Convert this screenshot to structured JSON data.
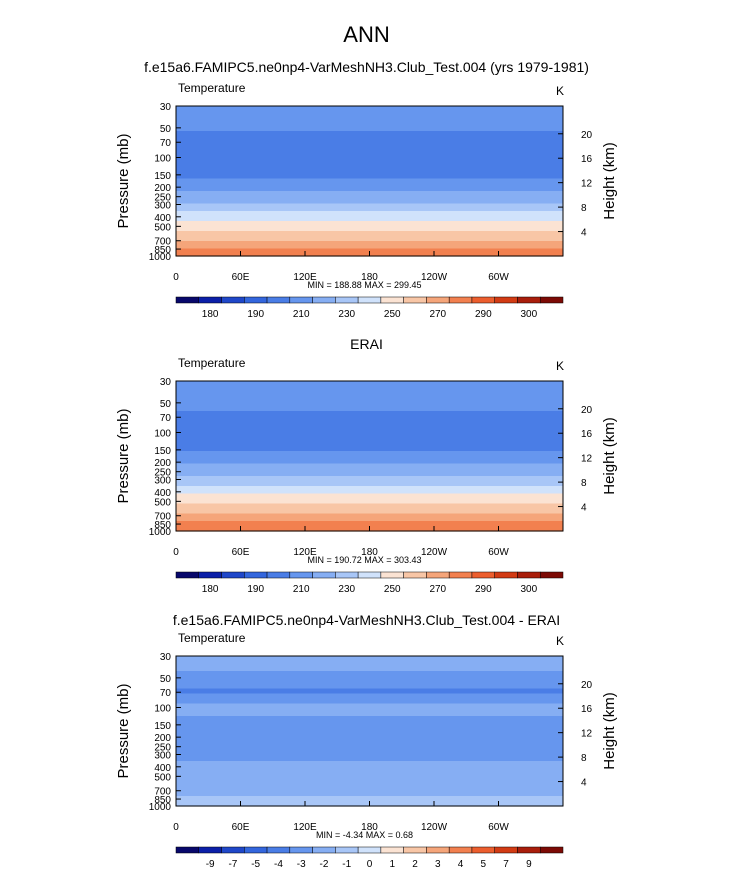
{
  "page": {
    "title": "ANN",
    "model_title": "f.e15a6.FAMIPC5.ne0np4-VarMeshNH3.Club_Test.004 (yrs 1979-1981)",
    "obs_title": "ERAI",
    "diff_title": "f.e15a6.FAMIPC5.ne0np4-VarMeshNH3.Club_Test.004 - ERAI"
  },
  "colors": {
    "temperature_bands": [
      "#08086b",
      "#0b1fa8",
      "#1f47c9",
      "#3366dd",
      "#4a7de6",
      "#6696ee",
      "#86aef3",
      "#a8c6f7",
      "#d0e2fb",
      "#fbe3d3",
      "#f8c6a6",
      "#f5a57a",
      "#f2804f",
      "#ec5e2e",
      "#d23b14",
      "#a91e0b",
      "#7c0a05"
    ],
    "difference_bands": [
      "#08086b",
      "#0b1fa8",
      "#1f47c9",
      "#3366dd",
      "#4a7de6",
      "#6696ee",
      "#86aef3",
      "#a8c6f7",
      "#d0e2fb",
      "#fbe3d3",
      "#f8c6a6",
      "#f5a57a",
      "#f2804f",
      "#ec5e2e",
      "#d23b14",
      "#a91e0b",
      "#7c0a05"
    ]
  },
  "chart_data": [
    {
      "type": "heatmap",
      "panel_key": "model",
      "title": "f.e15a6.FAMIPC5.ne0np4-VarMeshNH3.Club_Test.004 (yrs 1979-1981)",
      "left_label": "Temperature",
      "units": "K",
      "ylabel": "Pressure (mb)",
      "ylabel_right": "Height (km)",
      "y_ticks": [
        "30",
        "50",
        "70",
        "100",
        "150",
        "200",
        "250",
        "300",
        "400",
        "500",
        "700",
        "850",
        "1000"
      ],
      "y_ticks_right": [
        "20",
        "16",
        "12",
        "8",
        "4"
      ],
      "x_ticks": [
        "0",
        "60E",
        "120E",
        "180",
        "120W",
        "60W"
      ],
      "xlim": [
        0,
        360
      ],
      "ylim": [
        1000,
        30
      ],
      "stats": "MIN = 188.88  MAX = 299.45",
      "colorbar_labels": [
        "180",
        "190",
        "210",
        "230",
        "250",
        "270",
        "290",
        "300"
      ],
      "profile": [
        {
          "p": 30,
          "value": 213
        },
        {
          "p": 50,
          "value": 211
        },
        {
          "p": 70,
          "value": 206
        },
        {
          "p": 100,
          "value": 200
        },
        {
          "p": 150,
          "value": 207
        },
        {
          "p": 200,
          "value": 217
        },
        {
          "p": 250,
          "value": 223
        },
        {
          "p": 300,
          "value": 232
        },
        {
          "p": 400,
          "value": 246
        },
        {
          "p": 500,
          "value": 256
        },
        {
          "p": 700,
          "value": 271
        },
        {
          "p": 850,
          "value": 281
        },
        {
          "p": 1000,
          "value": 289
        }
      ]
    },
    {
      "type": "heatmap",
      "panel_key": "obs",
      "title": "ERAI",
      "left_label": "Temperature",
      "units": "K",
      "ylabel": "Pressure (mb)",
      "ylabel_right": "Height (km)",
      "y_ticks": [
        "30",
        "50",
        "70",
        "100",
        "150",
        "200",
        "250",
        "300",
        "400",
        "500",
        "700",
        "850",
        "1000"
      ],
      "y_ticks_right": [
        "20",
        "16",
        "12",
        "8",
        "4"
      ],
      "x_ticks": [
        "0",
        "60E",
        "120E",
        "180",
        "120W",
        "60W"
      ],
      "xlim": [
        0,
        360
      ],
      "ylim": [
        1000,
        30
      ],
      "stats": "MIN = 190.72  MAX = 303.43",
      "colorbar_labels": [
        "180",
        "190",
        "210",
        "230",
        "250",
        "270",
        "290",
        "300"
      ],
      "profile": [
        {
          "p": 30,
          "value": 214
        },
        {
          "p": 50,
          "value": 212
        },
        {
          "p": 70,
          "value": 208
        },
        {
          "p": 100,
          "value": 201
        },
        {
          "p": 150,
          "value": 209
        },
        {
          "p": 200,
          "value": 219
        },
        {
          "p": 250,
          "value": 226
        },
        {
          "p": 300,
          "value": 234
        },
        {
          "p": 400,
          "value": 248
        },
        {
          "p": 500,
          "value": 258
        },
        {
          "p": 700,
          "value": 273
        },
        {
          "p": 850,
          "value": 283
        },
        {
          "p": 1000,
          "value": 291
        }
      ]
    },
    {
      "type": "heatmap",
      "panel_key": "diff",
      "title": "f.e15a6.FAMIPC5.ne0np4-VarMeshNH3.Club_Test.004 - ERAI",
      "left_label": "Temperature",
      "units": "K",
      "ylabel": "Pressure (mb)",
      "ylabel_right": "Height (km)",
      "y_ticks": [
        "30",
        "50",
        "70",
        "100",
        "150",
        "200",
        "250",
        "300",
        "400",
        "500",
        "700",
        "850",
        "1000"
      ],
      "y_ticks_right": [
        "20",
        "16",
        "12",
        "8",
        "4"
      ],
      "x_ticks": [
        "0",
        "60E",
        "120E",
        "180",
        "120W",
        "60W"
      ],
      "xlim": [
        0,
        360
      ],
      "ylim": [
        1000,
        30
      ],
      "stats": "MIN = -4.34  MAX =   0.68",
      "colorbar_labels": [
        "-9",
        "-7",
        "-5",
        "-4",
        "-3",
        "-2",
        "-1",
        "0",
        "1",
        "2",
        "3",
        "4",
        "5",
        "7",
        "9"
      ],
      "profile": [
        {
          "p": 30,
          "value": -1.5
        },
        {
          "p": 50,
          "value": -2.2
        },
        {
          "p": 70,
          "value": -3.2
        },
        {
          "p": 100,
          "value": -1.5
        },
        {
          "p": 150,
          "value": -2.4
        },
        {
          "p": 200,
          "value": -3.0
        },
        {
          "p": 250,
          "value": -2.6
        },
        {
          "p": 300,
          "value": -2.2
        },
        {
          "p": 400,
          "value": -1.8
        },
        {
          "p": 500,
          "value": -1.5
        },
        {
          "p": 700,
          "value": -1.2
        },
        {
          "p": 850,
          "value": -0.8
        },
        {
          "p": 1000,
          "value": -0.5
        }
      ]
    }
  ]
}
